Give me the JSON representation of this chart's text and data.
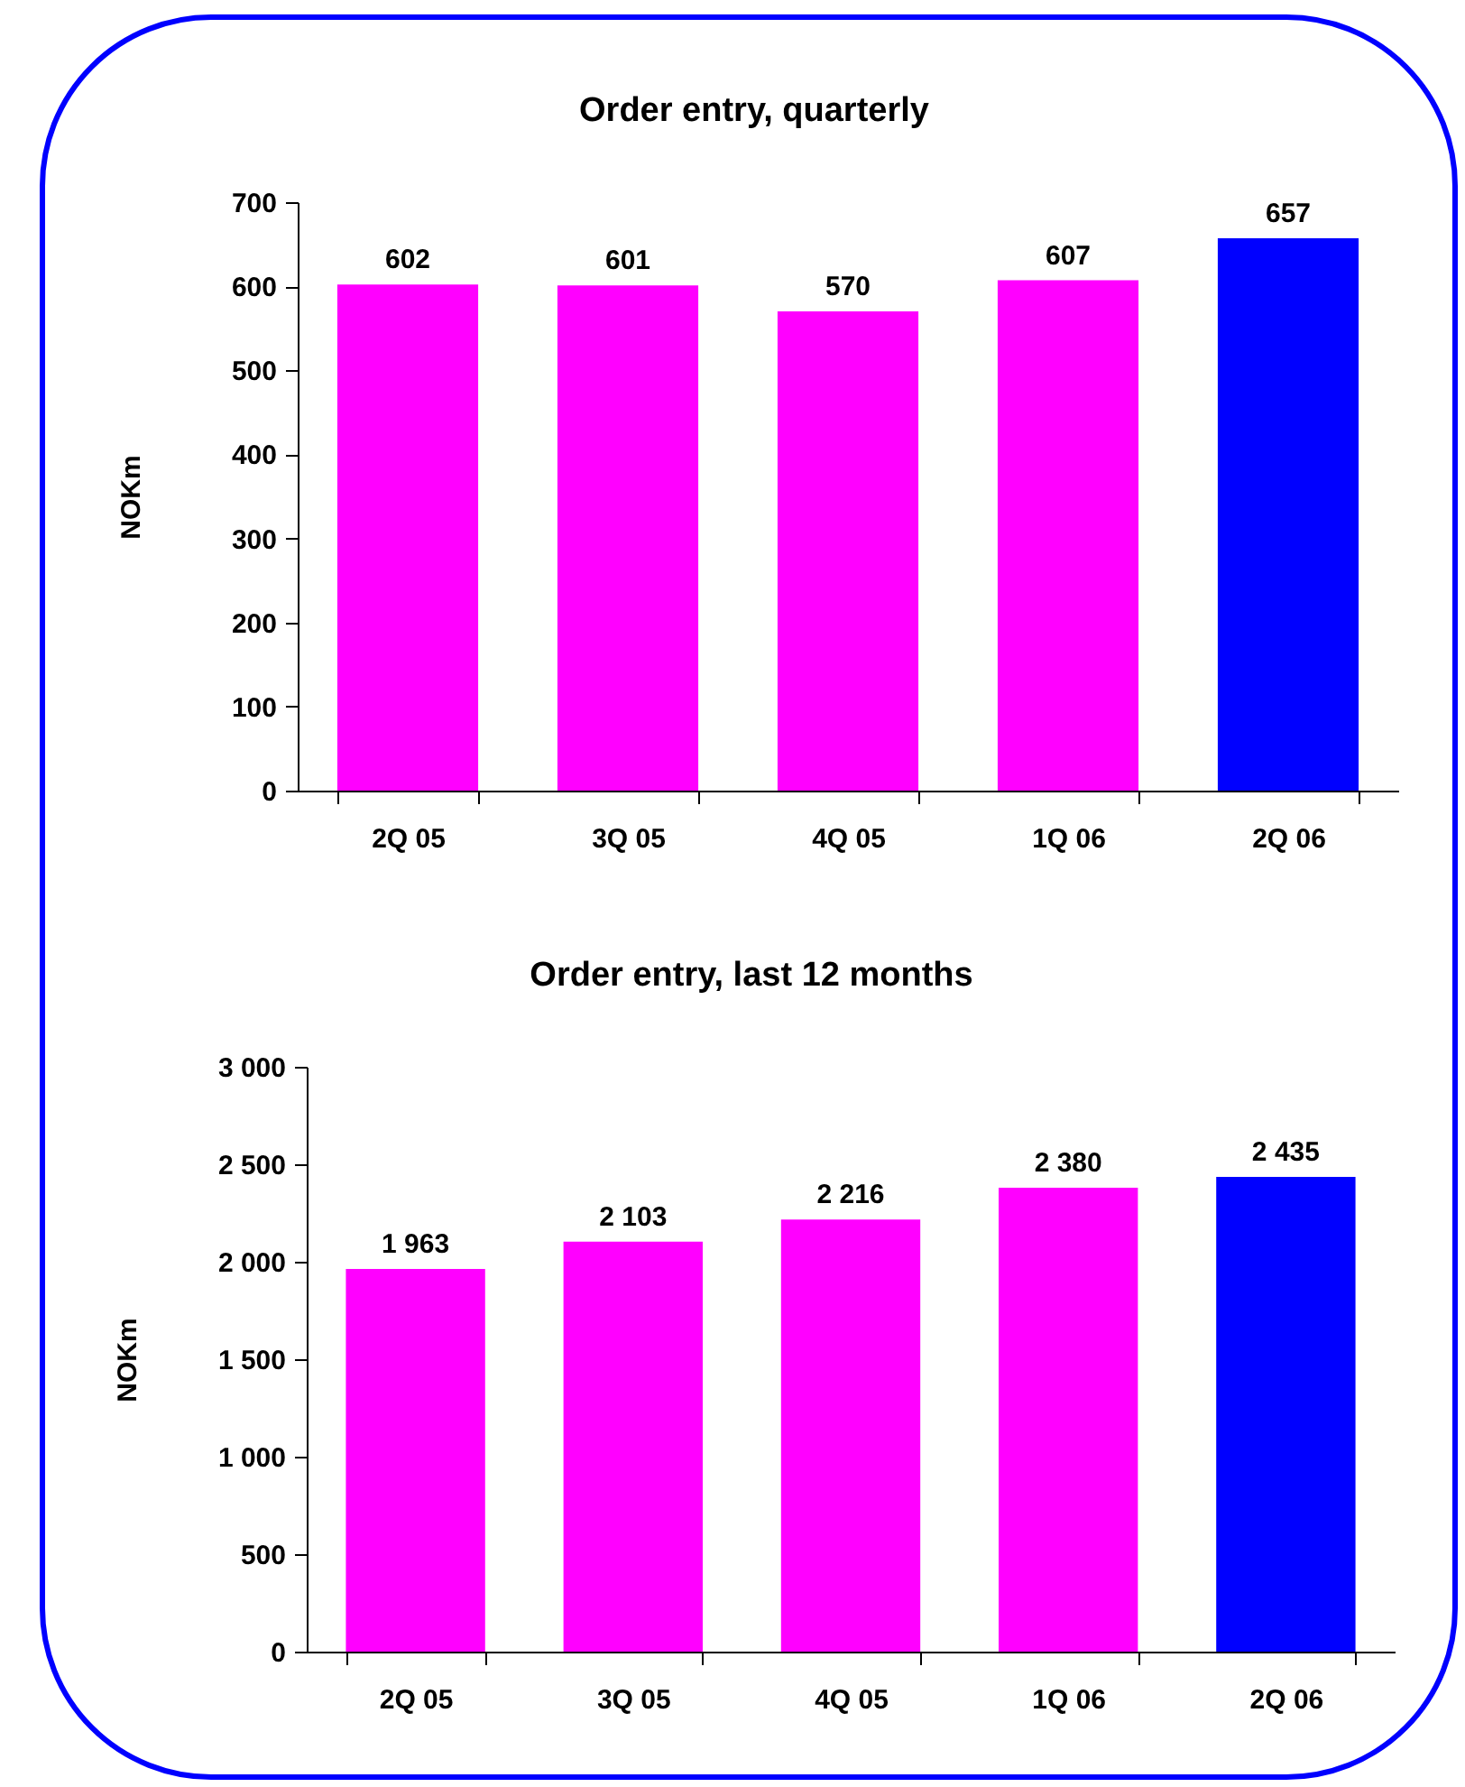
{
  "chart_data": [
    {
      "type": "bar",
      "title": "Order entry, quarterly",
      "ylabel": "NOKm",
      "categories": [
        "2Q 05",
        "3Q 05",
        "4Q 05",
        "1Q 06",
        "2Q 06"
      ],
      "values": [
        602,
        601,
        570,
        607,
        657
      ],
      "colors": [
        "#ff00ff",
        "#ff00ff",
        "#ff00ff",
        "#ff00ff",
        "#0000ff"
      ],
      "ylim": [
        0,
        700
      ],
      "yticks": [
        0,
        100,
        200,
        300,
        400,
        500,
        600,
        700
      ],
      "data_labels": true
    },
    {
      "type": "bar",
      "title": "Order entry, last 12 months",
      "ylabel": "NOKm",
      "categories": [
        "2Q 05",
        "3Q 05",
        "4Q 05",
        "1Q 06",
        "2Q 06"
      ],
      "values": [
        1963,
        2103,
        2216,
        2380,
        2435
      ],
      "value_labels": [
        "1 963",
        "2 103",
        "2 216",
        "2 380",
        "2 435"
      ],
      "colors": [
        "#ff00ff",
        "#ff00ff",
        "#ff00ff",
        "#ff00ff",
        "#0000ff"
      ],
      "ylim": [
        0,
        3000
      ],
      "yticks": [
        0,
        500,
        {
          "value": 1000,
          "label": "1 000"
        },
        {
          "value": 1500,
          "label": "1 500"
        },
        {
          "value": 2000,
          "label": "2 000"
        },
        {
          "value": 2500,
          "label": "2 500"
        },
        {
          "value": 3000,
          "label": "3 000"
        }
      ]
    }
  ]
}
